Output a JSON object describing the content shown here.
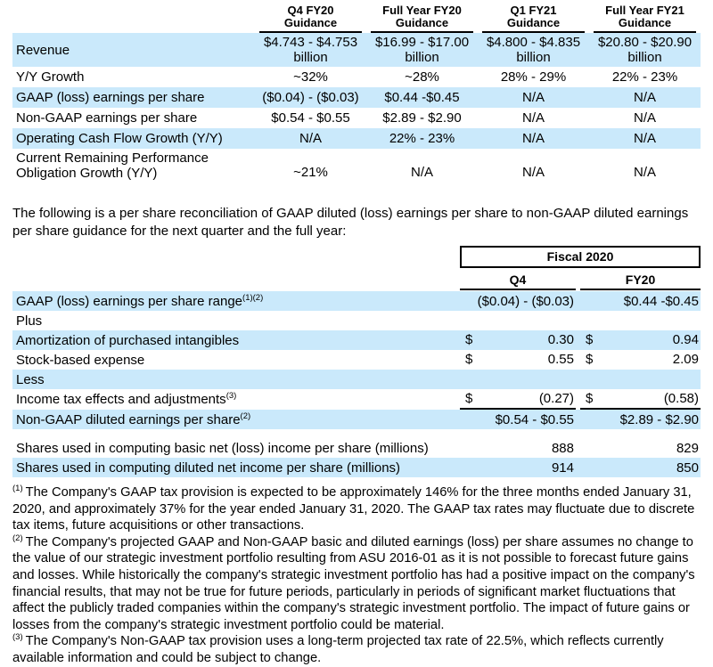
{
  "colors": {
    "row_highlight": "#cae9fb",
    "text": "#000000",
    "rule": "#000000"
  },
  "guidance_table": {
    "columns": [
      {
        "label": "Q4 FY20\nGuidance"
      },
      {
        "label": "Full Year FY20\nGuidance"
      },
      {
        "label": "Q1 FY21\nGuidance"
      },
      {
        "label": "Full Year FY21\nGuidance"
      }
    ],
    "rows": [
      {
        "label": "Revenue",
        "values": [
          "$4.743 - $4.753\nbillion",
          "$16.99 - $17.00\nbillion",
          "$4.800 - $4.835\nbillion",
          "$20.80 - $20.90\nbillion"
        ]
      },
      {
        "label": "Y/Y Growth",
        "values": [
          "~32%",
          "~28%",
          "28% - 29%",
          "22% - 23%"
        ]
      },
      {
        "label": "GAAP (loss) earnings per share",
        "values": [
          "($0.04) - ($0.03)",
          "$0.44 -$0.45",
          "N/A",
          "N/A"
        ]
      },
      {
        "label": "Non-GAAP earnings per share",
        "values": [
          "$0.54 - $0.55",
          "$2.89 - $2.90",
          "N/A",
          "N/A"
        ]
      },
      {
        "label": "Operating Cash Flow Growth (Y/Y)",
        "values": [
          "N/A",
          "22% - 23%",
          "N/A",
          "N/A"
        ]
      },
      {
        "label": "Current Remaining Performance\nObligation Growth (Y/Y)",
        "values": [
          "~21%",
          "N/A",
          "N/A",
          "N/A"
        ]
      }
    ]
  },
  "intro_text": "The following is a per share reconciliation of GAAP diluted (loss) earnings per share to non-GAAP diluted earnings per share guidance for the next quarter and the full year:",
  "reconciliation_table": {
    "group_header": "Fiscal 2020",
    "col_q4": "Q4",
    "col_fy20": "FY20",
    "gaap_range": {
      "label": "GAAP (loss) earnings per share range",
      "sup": "(1)(2)",
      "q4": "($0.04) - ($0.03)",
      "fy20": "$0.44 -$0.45"
    },
    "plus_label": "Plus",
    "amortization": {
      "label": "Amortization of purchased intangibles",
      "dollar_q4": "$",
      "q4": "0.30",
      "dollar_fy20": "$",
      "fy20": "0.94"
    },
    "stock_expense": {
      "label": "Stock-based expense",
      "dollar_q4": "$",
      "q4": "0.55",
      "dollar_fy20": "$",
      "fy20": "2.09"
    },
    "less_label": "Less",
    "income_tax": {
      "label": "Income tax effects and adjustments",
      "sup": "(3)",
      "dollar_q4": "$",
      "q4": "(0.27)",
      "dollar_fy20": "$",
      "fy20": "(0.58)"
    },
    "non_gaap": {
      "label": "Non-GAAP diluted earnings per share",
      "sup": "(2)",
      "q4": "$0.54 - $0.55",
      "fy20": "$2.89 - $2.90"
    },
    "shares_basic": {
      "label": "Shares used in computing basic net (loss) income per share (millions)",
      "q4": "888",
      "fy20": "829"
    },
    "shares_diluted": {
      "label": "Shares used in computing diluted net income per share (millions)",
      "q4": "914",
      "fy20": "850"
    }
  },
  "footnotes": [
    {
      "marker": "(1)",
      "text": "The Company's GAAP tax provision is expected to be approximately 146% for the three months ended January 31, 2020, and approximately 37% for the year ended January 31, 2020. The GAAP tax rates may fluctuate due to discrete tax items, future acquisitions or other transactions."
    },
    {
      "marker": "(2)",
      "text": "The Company's projected GAAP and Non-GAAP basic and diluted earnings (loss) per share assumes no change to the value of our strategic investment portfolio resulting from ASU 2016-01 as it is not possible to forecast future gains and losses. While historically the company's strategic investment portfolio has had a positive impact on the company's financial results, that may not be true for future periods, particularly in periods of significant market fluctuations that affect the publicly traded companies within the company's strategic investment portfolio. The impact of future gains or losses from the company's strategic investment portfolio could be material."
    },
    {
      "marker": "(3)",
      "text": "The Company's Non-GAAP tax provision uses a long-term projected tax rate of 22.5%, which reflects currently available information and could be subject to change."
    }
  ]
}
